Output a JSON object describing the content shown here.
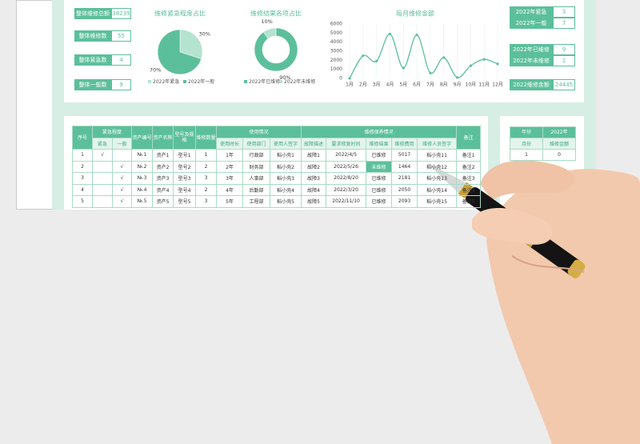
{
  "kpis": [
    {
      "label": "整体维修总额",
      "value": 38239
    },
    {
      "label": "整体维修数",
      "value": 55
    },
    {
      "label": "整体紧急数",
      "value": 4
    },
    {
      "label": "整体一般数",
      "value": 9
    }
  ],
  "chart_data": [
    {
      "type": "pie",
      "title": "维修紧急程度占比",
      "categories": [
        "2022年紧急",
        "2022年一般"
      ],
      "values": [
        30,
        70
      ],
      "value_labels": [
        "30%",
        "70%"
      ],
      "colors": [
        "#b4e3cf",
        "#5cbf9b"
      ]
    },
    {
      "type": "donut",
      "title": "维修结果各项占比",
      "categories": [
        "2022年已维修",
        "2022年未维修"
      ],
      "values": [
        90,
        10
      ],
      "value_labels": [
        "90%",
        "10%"
      ],
      "colors": [
        "#5cbf9b",
        "#b4e3cf"
      ]
    },
    {
      "type": "line",
      "title": "每月维修金额",
      "categories": [
        "1月",
        "2月",
        "3月",
        "4月",
        "5月",
        "6月",
        "7月",
        "8月",
        "9月",
        "10月",
        "11月",
        "12月"
      ],
      "values": [
        0,
        2500,
        1900,
        4900,
        1150,
        4800,
        600,
        2300,
        100,
        1400,
        2100,
        1600
      ],
      "color": "#5cbf9b",
      "ylim": [
        0,
        6000
      ],
      "yticks": [
        0,
        1000,
        2000,
        3000,
        4000,
        5000,
        6000
      ]
    }
  ],
  "summary": [
    {
      "label": "2022年紧急",
      "value": 3
    },
    {
      "label": "2022年一般",
      "value": 7
    },
    {
      "label": "2022年已维修",
      "value": 9
    },
    {
      "label": "2022年未维修",
      "value": 1
    },
    {
      "label": "2022维修金额",
      "value": 24445
    }
  ],
  "table": {
    "header": [
      "序号",
      "紧急程度",
      "资产编号",
      "资产名称",
      "型号及规格",
      "维修数量",
      "使用情况",
      "维修保养情况",
      "备注"
    ],
    "subheader": [
      "紧急",
      "一般",
      "使用时长",
      "使用部门",
      "使用人签字",
      "故障描述",
      "要求修复时间",
      "维修结果",
      "维修费用",
      "维修人员签字"
    ],
    "rows": [
      [
        1,
        "√",
        null,
        "№.1",
        "资产1",
        "型号1",
        1,
        "1年",
        "行政部",
        "稻小壳1",
        "故障1",
        "2022/4/5",
        "已维修",
        5017,
        "稻小壳11",
        "备注1"
      ],
      [
        2,
        null,
        "√",
        "№.2",
        "资产2",
        "型号2",
        2,
        "2年",
        "财务部",
        "稻小壳2",
        "故障2",
        "2022/5/26",
        "未维修",
        1464,
        "稻小壳12",
        "备注2"
      ],
      [
        3,
        null,
        "√",
        "№.3",
        "资产3",
        "型号3",
        3,
        "3年",
        "人事部",
        "稻小壳3",
        "故障3",
        "2022/8/20",
        "已维修",
        2181,
        "稻小壳13",
        "备注3"
      ],
      [
        4,
        null,
        "√",
        "№.4",
        "资产4",
        "型号4",
        2,
        "4年",
        "后勤部",
        "稻小壳4",
        "故障4",
        "2022/3/20",
        "已维修",
        2050,
        "稻小壳14",
        "备注4"
      ],
      [
        5,
        null,
        "√",
        "№.5",
        "资产5",
        "型号5",
        3,
        "5年",
        "工程部",
        "稻小壳5",
        "故障5",
        "2022/11/10",
        "已维修",
        2093,
        "稻小壳15",
        "备注5"
      ]
    ]
  },
  "side_table": {
    "rows": [
      [
        "年份",
        "2022年"
      ],
      [
        "月份",
        "维修金额"
      ],
      [
        1,
        0
      ]
    ]
  }
}
